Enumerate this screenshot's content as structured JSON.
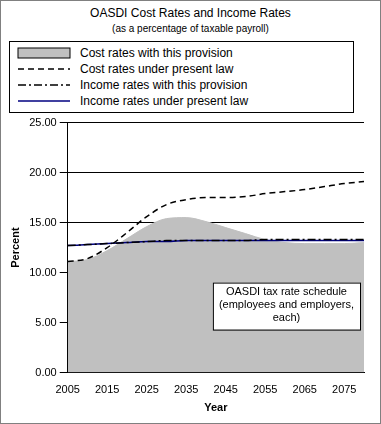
{
  "chart_data": {
    "type": "line",
    "title": "OASDI Cost Rates and Income Rates",
    "subtitle": "(as a percentage of taxable payroll)",
    "xlabel": "Year",
    "ylabel": "Percent",
    "annotation": "OASDI tax rate schedule (employees and employers, each)",
    "x": [
      2005,
      2010,
      2015,
      2020,
      2025,
      2030,
      2035,
      2040,
      2045,
      2050,
      2055,
      2060,
      2065,
      2070,
      2075,
      2080
    ],
    "series": [
      {
        "name": "Cost rates with this provision",
        "type": "area",
        "color": "#c0c0c0",
        "line_style": "solid",
        "values": [
          11.1,
          11.3,
          12.2,
          13.4,
          14.6,
          15.4,
          15.5,
          15.1,
          14.5,
          13.9,
          13.3,
          13.0,
          12.9,
          12.9,
          12.9,
          13.0
        ]
      },
      {
        "name": "Cost rates under present law",
        "type": "line",
        "color": "#000000",
        "line_style": "dashed",
        "values": [
          11.1,
          11.4,
          12.5,
          14.0,
          15.6,
          16.8,
          17.3,
          17.5,
          17.5,
          17.6,
          17.9,
          18.1,
          18.3,
          18.6,
          18.9,
          19.1
        ]
      },
      {
        "name": "Income rates with this provision",
        "type": "line",
        "color": "#000000",
        "line_style": "dashdot",
        "values": [
          12.7,
          12.8,
          12.9,
          13.0,
          13.1,
          13.2,
          13.2,
          13.2,
          13.2,
          13.2,
          13.3,
          13.3,
          13.3,
          13.3,
          13.3,
          13.3
        ]
      },
      {
        "name": "Income rates under present law",
        "type": "line",
        "color": "#000080",
        "line_style": "solid",
        "values": [
          12.7,
          12.8,
          12.9,
          13.0,
          13.1,
          13.1,
          13.2,
          13.2,
          13.2,
          13.2,
          13.2,
          13.2,
          13.2,
          13.2,
          13.2,
          13.2
        ]
      }
    ],
    "xlim": [
      2005,
      2080
    ],
    "xticks": [
      2005,
      2015,
      2025,
      2035,
      2045,
      2055,
      2065,
      2075
    ],
    "ylim": [
      0,
      25
    ],
    "yticks": [
      {
        "value": 0,
        "label": "0.00"
      },
      {
        "value": 5,
        "label": "5.00"
      },
      {
        "value": 10,
        "label": "10.00"
      },
      {
        "value": 15,
        "label": "15.00"
      },
      {
        "value": 20,
        "label": "20.00"
      },
      {
        "value": 25,
        "label": "25.00"
      }
    ],
    "grid": true
  }
}
